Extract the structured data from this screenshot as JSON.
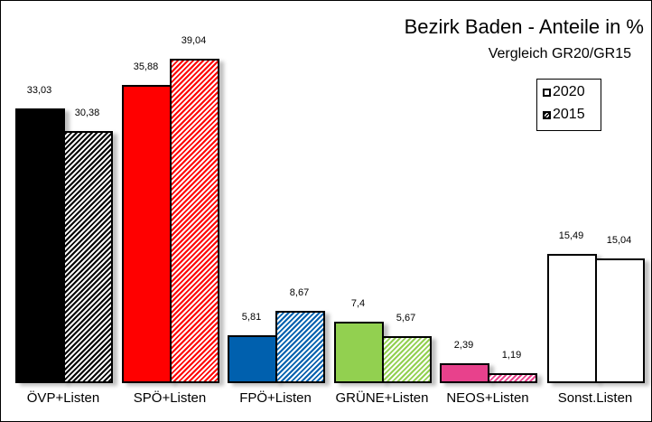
{
  "chart_data": {
    "type": "bar",
    "title": "Bezirk Baden - Anteile in %",
    "subtitle": "Vergleich GR20/GR15",
    "categories": [
      "ÖVP+Listen",
      "SPÖ+Listen",
      "FPÖ+Listen",
      "GRÜNE+Listen",
      "NEOS+Listen",
      "Sonst.Listen"
    ],
    "series": [
      {
        "name": "2020",
        "values": [
          33.03,
          35.88,
          5.81,
          7.4,
          2.39,
          15.49
        ],
        "labels": [
          "33,03",
          "35,88",
          "5,81",
          "7,4",
          "2,39",
          "15,49"
        ],
        "fill": "solid"
      },
      {
        "name": "2015",
        "values": [
          30.38,
          39.04,
          8.67,
          5.67,
          1.19,
          15.04
        ],
        "labels": [
          "30,38",
          "39,04",
          "8,67",
          "5,67",
          "1,19",
          "15,04"
        ],
        "fill": "hatched"
      }
    ],
    "colors": [
      "#000000",
      "#ff0000",
      "#0060ae",
      "#92d050",
      "#e8418c",
      "#ffffff"
    ],
    "xlabel": "",
    "ylabel": "",
    "ylim": [
      0,
      42
    ],
    "grid": false,
    "legend_position": "upper right"
  },
  "legend": {
    "items": [
      "2020",
      "2015"
    ]
  }
}
